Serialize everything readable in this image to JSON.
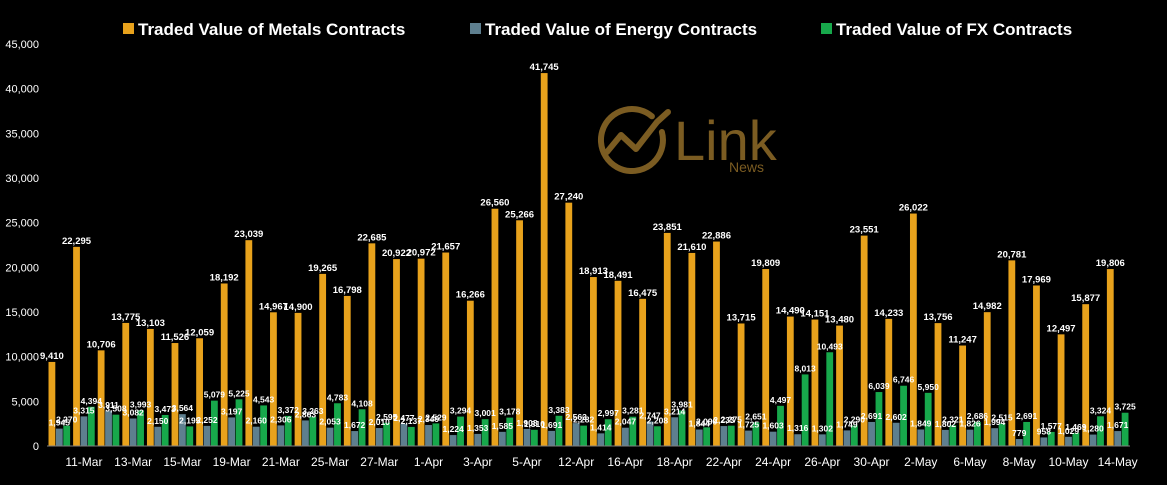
{
  "logo": {
    "brand": "Link",
    "sub": "News",
    "color": "#7B5C22"
  },
  "colors": {
    "background": "#000000",
    "axis": "#7f7f7f",
    "text": "#ffffff"
  },
  "chart_data": {
    "type": "bar",
    "title": "",
    "xlabel": "",
    "ylabel": "",
    "ylim": [
      0,
      45000
    ],
    "grid": false,
    "legend_position": "top",
    "y_tick_labels": [
      "0",
      "5,000",
      "10,000",
      "15,000",
      "20,000",
      "25,000",
      "30,000",
      "35,000",
      "40,000",
      "45,000"
    ],
    "x_tick_labels": [
      "11-Mar",
      "13-Mar",
      "15-Mar",
      "19-Mar",
      "21-Mar",
      "25-Mar",
      "27-Mar",
      "1-Apr",
      "3-Apr",
      "5-Apr",
      "12-Apr",
      "16-Apr",
      "18-Apr",
      "22-Apr",
      "24-Apr",
      "26-Apr",
      "30-Apr",
      "2-May",
      "6-May",
      "8-May",
      "10-May",
      "14-May"
    ],
    "series": [
      {
        "name": "Traded Value of Metals Contracts",
        "color": "#E8A21C",
        "values": [
          9410,
          22295,
          10706,
          13775,
          13103,
          11526,
          12059,
          18192,
          23039,
          14967,
          14900,
          19265,
          16798,
          22685,
          20922,
          20972,
          21657,
          16266,
          26560,
          25266,
          41745,
          27240,
          18913,
          18491,
          16475,
          23851,
          21610,
          22886,
          13715,
          19809,
          14490,
          14151,
          13480,
          23551,
          14233,
          26022,
          13756,
          11247,
          14982,
          20781,
          17969,
          12497,
          15877,
          19806
        ]
      },
      {
        "name": "Traded Value of Energy Contracts",
        "color": "#5E7F8F",
        "values": [
          1945,
          3315,
          3911,
          3082,
          2150,
          3564,
          2252,
          3197,
          2160,
          2306,
          2863,
          2053,
          1672,
          2010,
          2477,
          2349,
          1224,
          1353,
          1585,
          1908,
          1691,
          2563,
          1414,
          2047,
          2747,
          3214,
          1844,
          2233,
          1725,
          1603,
          1316,
          1302,
          1749,
          2691,
          2602,
          1849,
          1802,
          1826,
          1994,
          779,
          958,
          1029,
          1280,
          1671
        ]
      },
      {
        "name": "Traded Value of FX Contracts",
        "color": "#17A84B",
        "values": [
          2270,
          4394,
          3508,
          3993,
          3473,
          2195,
          5079,
          5225,
          4543,
          3372,
          3263,
          4783,
          4108,
          2595,
          2137,
          2529,
          3294,
          3001,
          3178,
          1810,
          3383,
          2282,
          2997,
          3281,
          2208,
          3981,
          2090,
          2275,
          2651,
          4497,
          8013,
          10493,
          2290,
          6039,
          6746,
          5950,
          2321,
          2686,
          2515,
          2691,
          1577,
          1469,
          3324,
          3725
        ]
      }
    ]
  }
}
